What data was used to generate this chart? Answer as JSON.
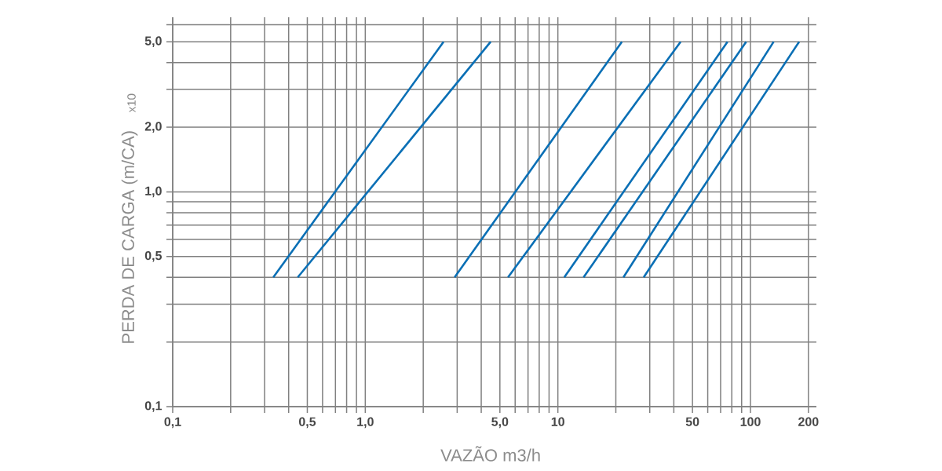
{
  "chart_data": {
    "type": "line",
    "xlabel": "VAZÃO m3/h",
    "ylabel": "PERDA DE CARGA (m/CA)",
    "annotations": [
      "x10"
    ],
    "log": "xy",
    "grid": true,
    "line_style": "solid",
    "xlim": [
      0.1,
      220
    ],
    "ylim": [
      0.1,
      6.5
    ],
    "xticks": [
      {
        "value": 0.1,
        "label": "0,1"
      },
      {
        "value": 0.2,
        "label": null
      },
      {
        "value": 0.3,
        "label": null
      },
      {
        "value": 0.4,
        "label": null
      },
      {
        "value": 0.5,
        "label": "0,5"
      },
      {
        "value": 0.6,
        "label": null
      },
      {
        "value": 0.7,
        "label": null
      },
      {
        "value": 0.8,
        "label": null
      },
      {
        "value": 0.9,
        "label": null
      },
      {
        "value": 1,
        "label": "1,0"
      },
      {
        "value": 2,
        "label": null
      },
      {
        "value": 3,
        "label": null
      },
      {
        "value": 4,
        "label": null
      },
      {
        "value": 5,
        "label": "5,0"
      },
      {
        "value": 6,
        "label": null
      },
      {
        "value": 7,
        "label": null
      },
      {
        "value": 8,
        "label": null
      },
      {
        "value": 9,
        "label": null
      },
      10,
      {
        "value": 20,
        "label": null
      },
      {
        "value": 30,
        "label": null
      },
      {
        "value": 40,
        "label": null
      },
      50,
      {
        "value": 60,
        "label": null
      },
      {
        "value": 70,
        "label": null
      },
      {
        "value": 80,
        "label": null
      },
      {
        "value": 90,
        "label": null
      },
      100,
      200
    ],
    "yticks": [
      {
        "value": 0.1,
        "label": "0,1"
      },
      {
        "value": 0.2,
        "label": null
      },
      {
        "value": 0.3,
        "label": null
      },
      {
        "value": 0.4,
        "label": null
      },
      {
        "value": 0.5,
        "label": "0,5"
      },
      {
        "value": 0.6,
        "label": null
      },
      {
        "value": 0.7,
        "label": null
      },
      {
        "value": 0.8,
        "label": null
      },
      {
        "value": 0.9,
        "label": null
      },
      {
        "value": 1,
        "label": "1,0"
      },
      {
        "value": 2,
        "label": "2,0"
      },
      {
        "value": 3,
        "label": null
      },
      {
        "value": 4,
        "label": null
      },
      {
        "value": 5,
        "label": "5,0"
      },
      {
        "value": 6,
        "label": null
      }
    ],
    "series": [
      {
        "color": "#0a6fb5",
        "x": [
          0.333,
          2.55
        ],
        "values": [
          0.4,
          5.0
        ]
      },
      {
        "color": "#0a6fb5",
        "x": [
          0.446,
          4.48
        ],
        "values": [
          0.4,
          5.0
        ]
      },
      {
        "color": "#0a6fb5",
        "x": [
          2.91,
          21.5
        ],
        "values": [
          0.4,
          5.0
        ]
      },
      {
        "color": "#0a6fb5",
        "x": [
          5.51,
          43.4
        ],
        "values": [
          0.4,
          5.0
        ]
      },
      {
        "color": "#0a6fb5",
        "x": [
          10.8,
          76
        ],
        "values": [
          0.4,
          5.0
        ]
      },
      {
        "color": "#0a6fb5",
        "x": [
          13.6,
          95
        ],
        "values": [
          0.4,
          5.0
        ]
      },
      {
        "color": "#0a6fb5",
        "x": [
          21.9,
          132
        ],
        "values": [
          0.4,
          5.0
        ]
      },
      {
        "color": "#0a6fb5",
        "x": [
          27.9,
          179
        ],
        "values": [
          0.4,
          5.0
        ]
      }
    ]
  }
}
